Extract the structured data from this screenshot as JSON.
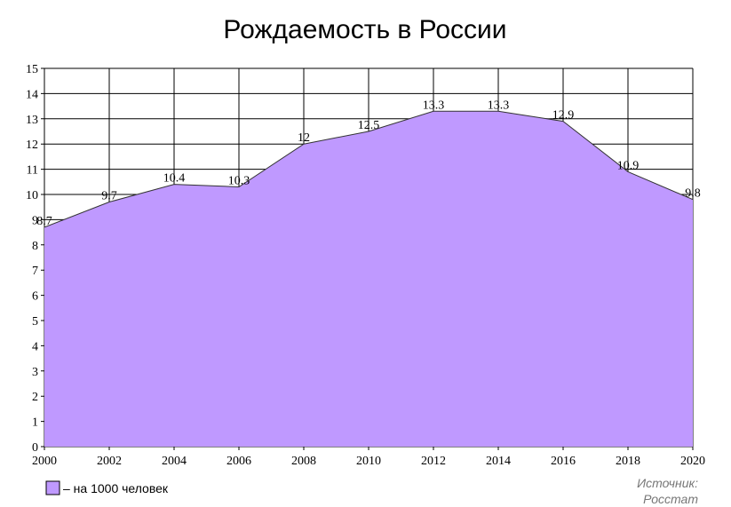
{
  "chart_data": {
    "type": "area",
    "title": "Рождаемость в России",
    "x": [
      2000,
      2002,
      2004,
      2006,
      2008,
      2010,
      2012,
      2014,
      2016,
      2018,
      2020
    ],
    "series": [
      {
        "name": "– на 1000 человек",
        "x": [
          2000,
          2002,
          2004,
          2006,
          2008,
          2010,
          2012,
          2014,
          2016,
          2018,
          2020
        ],
        "values": [
          8.7,
          9.7,
          10.4,
          10.3,
          12,
          12.5,
          13.3,
          13.3,
          12.9,
          10.9,
          9.8
        ],
        "labels": [
          "8.7",
          "9.7",
          "10.4",
          "10.3",
          "12",
          "12.5",
          "13.3",
          "13.3",
          "12.9",
          "10.9",
          "9.8"
        ],
        "color": "#bf99ff"
      }
    ],
    "xlim": [
      2000,
      2020
    ],
    "ylim": [
      0,
      15
    ],
    "x_ticks": [
      "2000",
      "2002",
      "2004",
      "2006",
      "2008",
      "2010",
      "2012",
      "2014",
      "2016",
      "2018",
      "2020"
    ],
    "y_ticks": [
      "0",
      "1",
      "2",
      "3",
      "4",
      "5",
      "6",
      "7",
      "8",
      "9",
      "10",
      "11",
      "12",
      "13",
      "14",
      "15"
    ],
    "grid": true,
    "legend_position": "bottom-left",
    "source_label": "Источник:",
    "source_value": "Росстат"
  }
}
